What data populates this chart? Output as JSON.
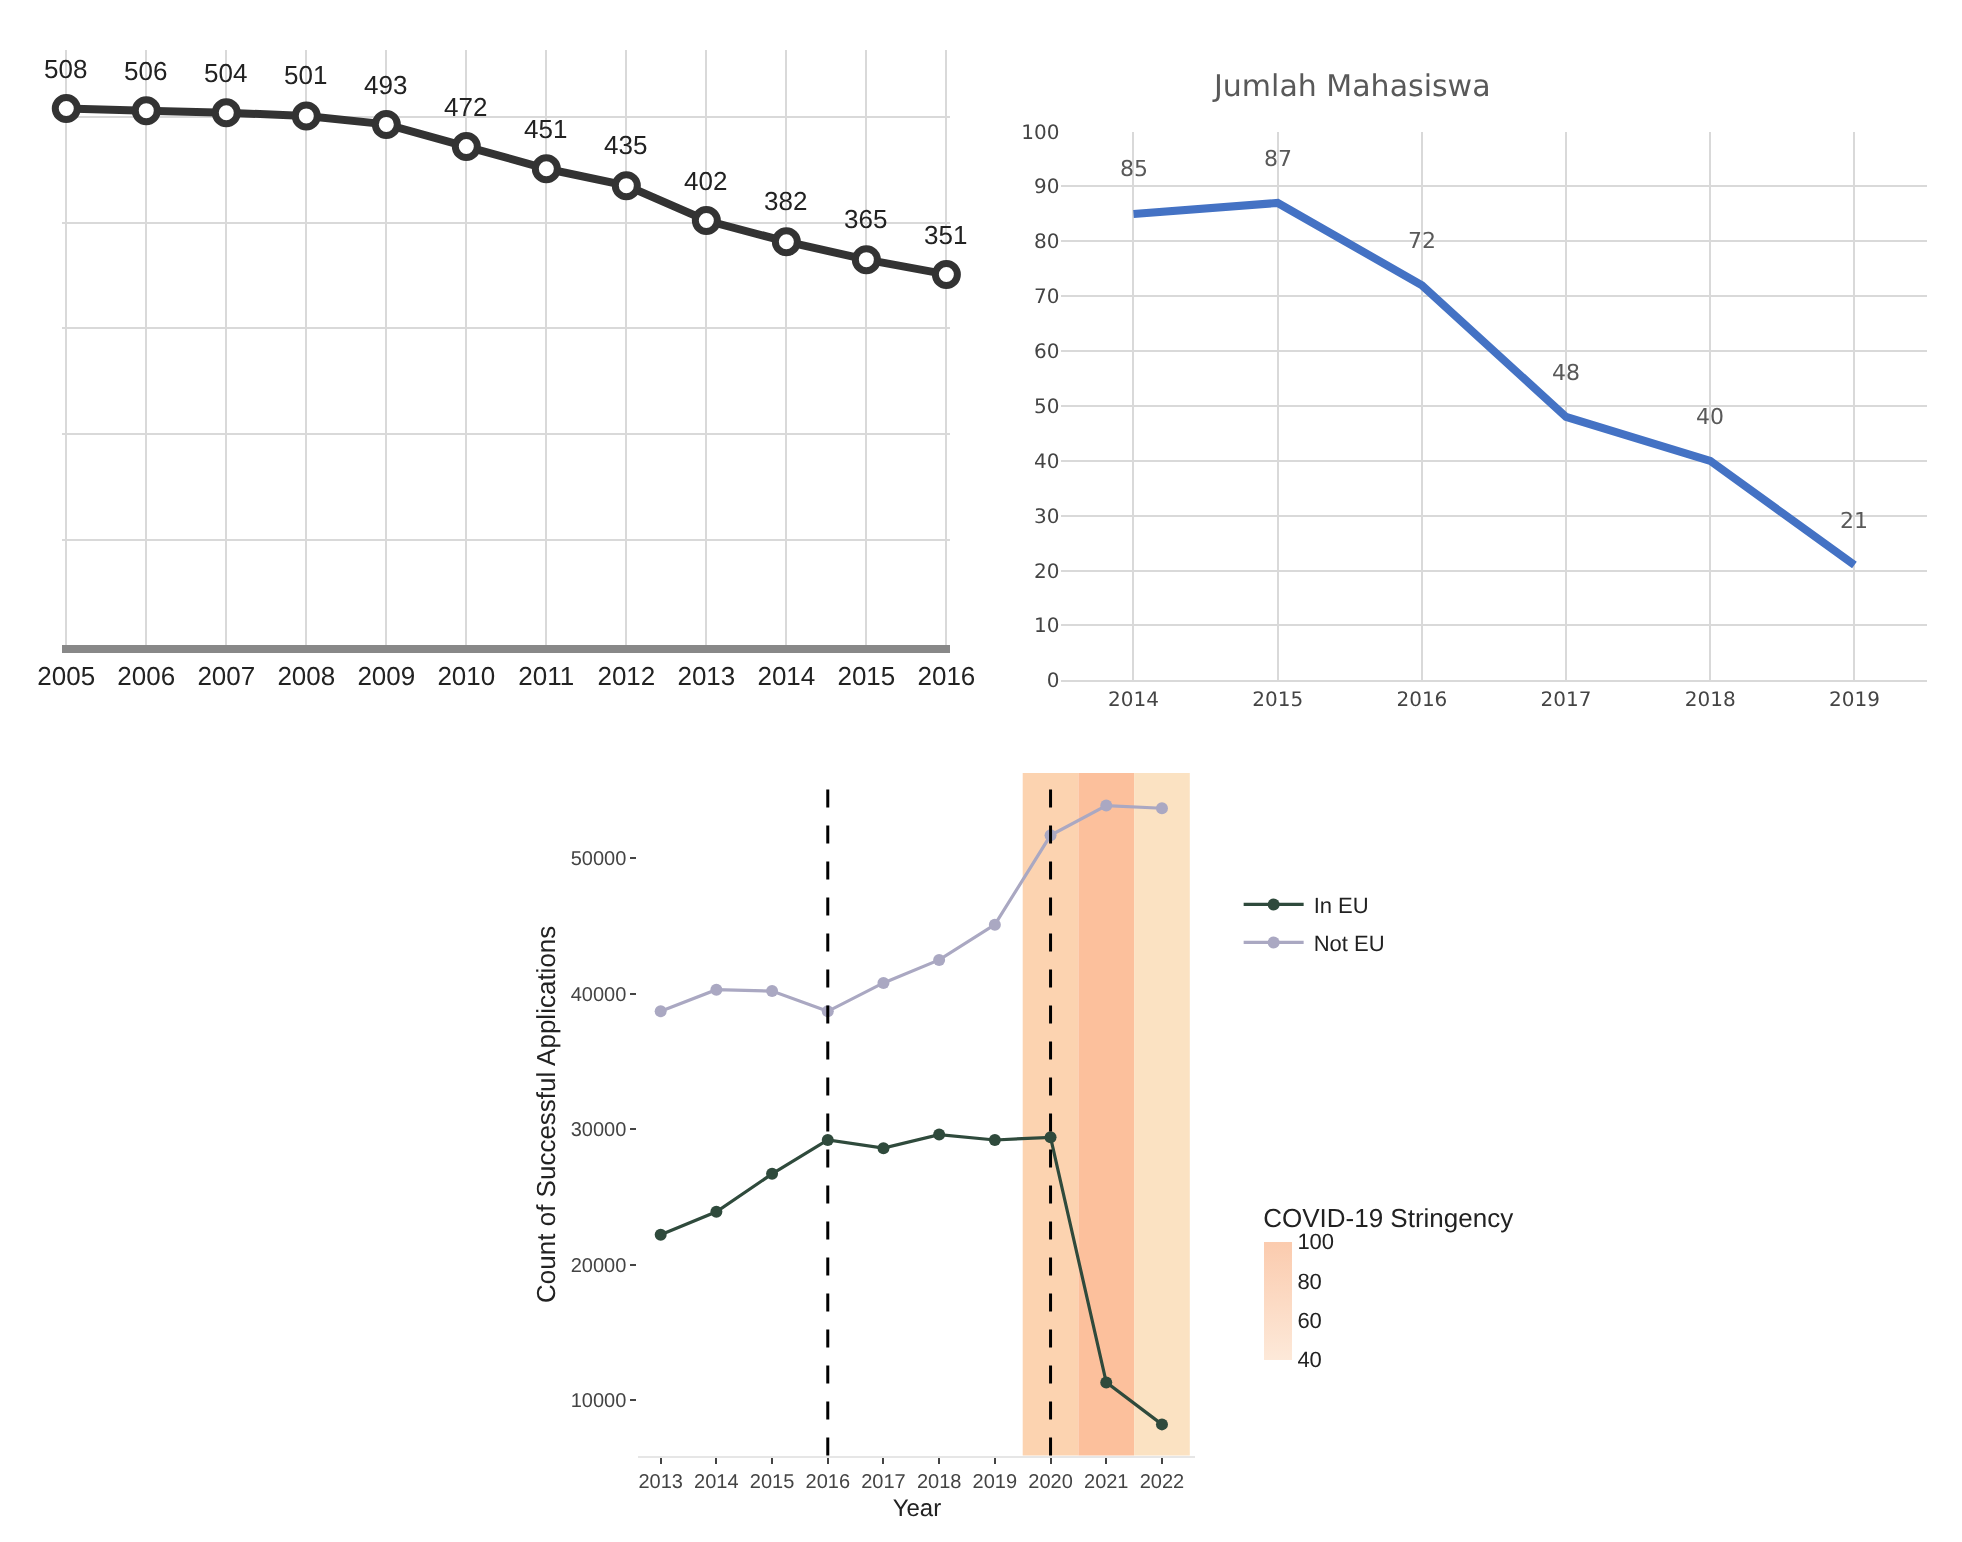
{
  "chart_data": [
    {
      "type": "line",
      "categories": [
        "2005",
        "2006",
        "2007",
        "2008",
        "2009",
        "2010",
        "2011",
        "2012",
        "2013",
        "2014",
        "2015",
        "2016"
      ],
      "series": [
        {
          "color": "#333333",
          "values": [
            508,
            506,
            504,
            501,
            493,
            472,
            451,
            435,
            402,
            382,
            365,
            351
          ]
        }
      ],
      "tick_labels": "x",
      "grid": true,
      "marker": "circle",
      "line_style": "solid",
      "data_labels": true
    },
    {
      "type": "line",
      "title": "Jumlah Mahasiswa",
      "categories": [
        "2014",
        "2015",
        "2016",
        "2017",
        "2018",
        "2019"
      ],
      "series": [
        {
          "color": "#4472c4",
          "values": [
            85,
            87,
            72,
            48,
            40,
            21
          ]
        }
      ],
      "ylim": [
        0,
        100
      ],
      "yticks": [
        0,
        10,
        20,
        30,
        40,
        50,
        60,
        70,
        80,
        90,
        100
      ],
      "grid": true,
      "line_style": "solid",
      "data_labels": true
    },
    {
      "type": "line",
      "xlabel": "Year",
      "ylabel": "Count of Successful Applications",
      "clabel": "COVID-19 Stringency",
      "x": [
        2013,
        2014,
        2015,
        2016,
        2017,
        2018,
        2019,
        2020,
        2021,
        2022
      ],
      "xlim": [
        2012.6,
        2022.6
      ],
      "series": [
        {
          "name": "In EU",
          "color": "#2f4a3c",
          "values": [
            22200,
            23900,
            26700,
            29200,
            28600,
            29600,
            29200,
            29400,
            11300,
            8200
          ]
        },
        {
          "name": "Not EU",
          "color": "#aaa8c2",
          "values": [
            38700,
            40300,
            40200,
            38700,
            40800,
            42500,
            45100,
            51700,
            53900,
            53700
          ]
        }
      ],
      "xticks": [
        2013,
        2014,
        2015,
        2016,
        2017,
        2018,
        2019,
        2020,
        2021,
        2022
      ],
      "ylim": [
        5900,
        56300
      ],
      "yticks": [
        10000,
        20000,
        30000,
        40000,
        50000
      ],
      "clim": [
        40,
        100
      ],
      "cticks": [
        40,
        60,
        80,
        100
      ],
      "ref_lines": [
        {
          "axis": "x",
          "value": 2016,
          "color": "#000000",
          "line_style": "dashed"
        },
        {
          "axis": "x",
          "value": 2020,
          "color": "#000000",
          "line_style": "dashed"
        }
      ],
      "bands": [
        {
          "axis": "x",
          "from": 2019.5,
          "to": 2020.5,
          "color": "#fcd3b0"
        },
        {
          "axis": "x",
          "from": 2020.5,
          "to": 2021.5,
          "color": "#fcc09c"
        },
        {
          "axis": "x",
          "from": 2021.5,
          "to": 2022.5,
          "color": "#fbe2c2"
        }
      ],
      "grid": false,
      "marker": "circle",
      "line_style": "solid",
      "legend": "right"
    }
  ]
}
